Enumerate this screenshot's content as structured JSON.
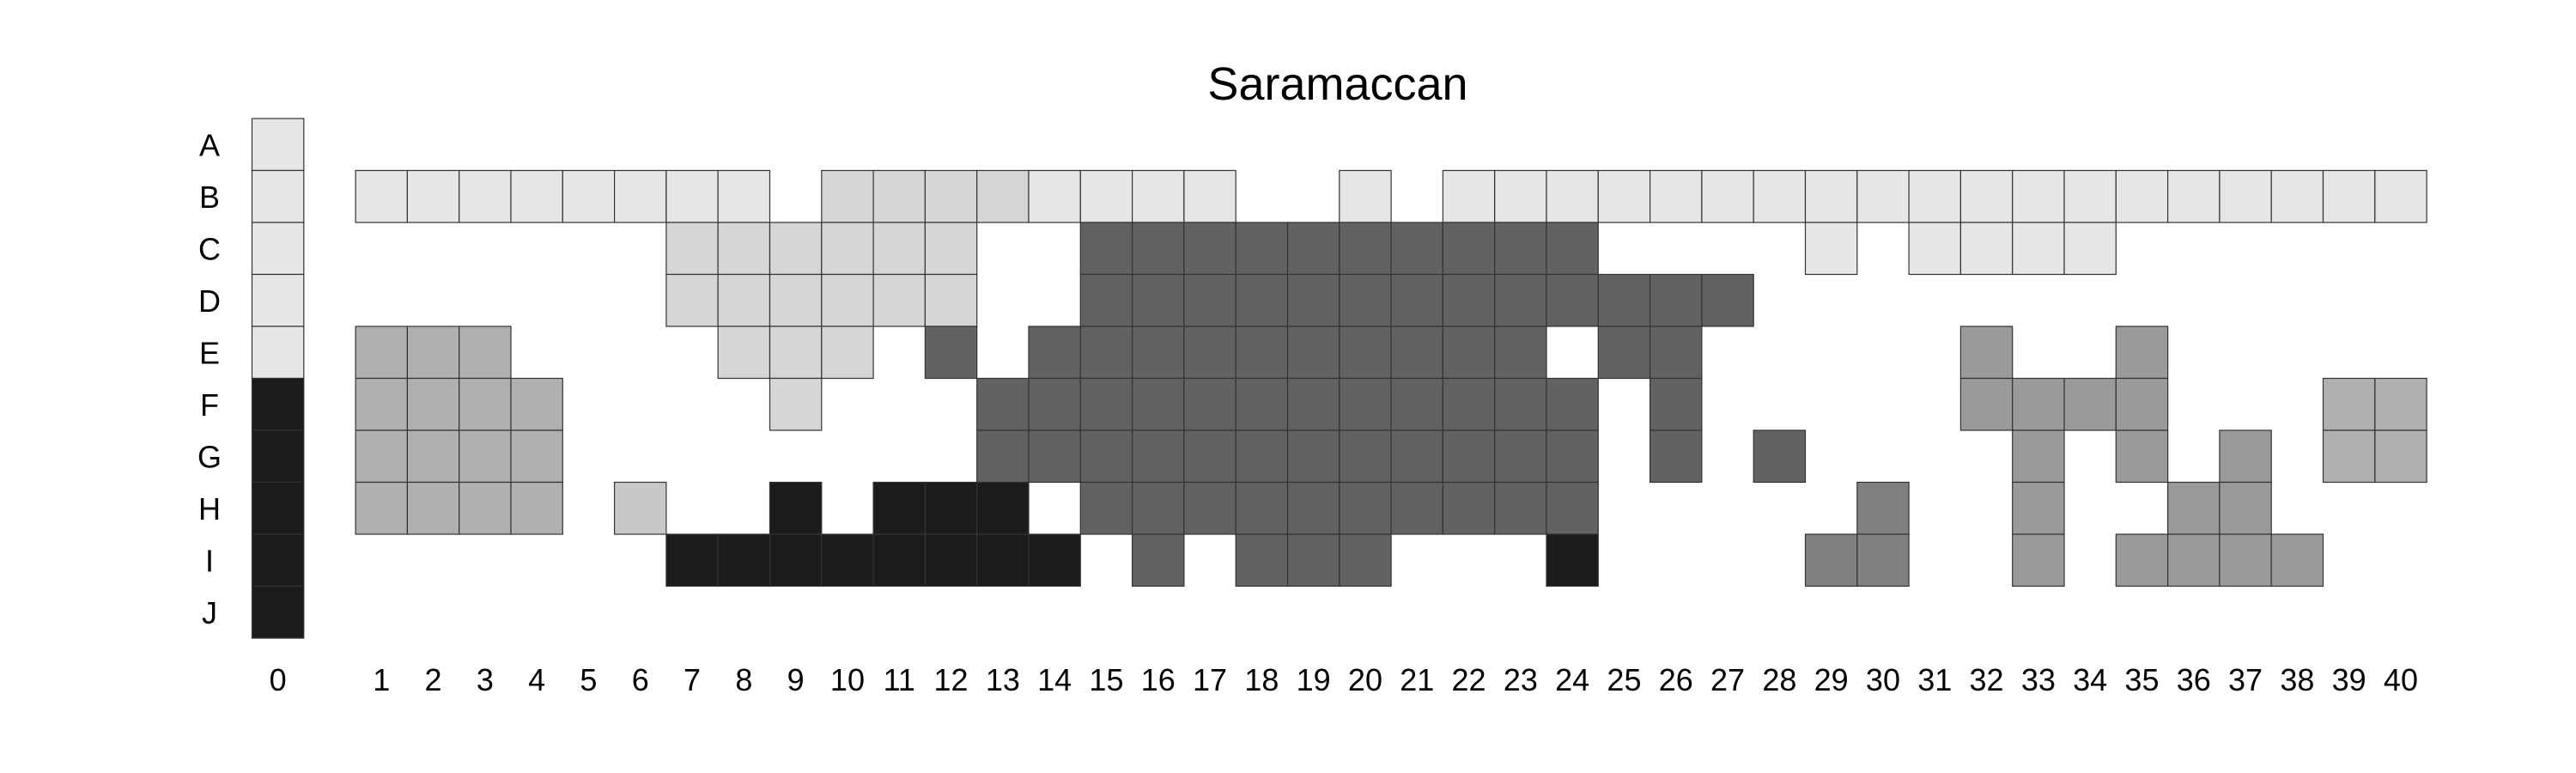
{
  "chart_data": {
    "type": "heatmap",
    "title": "Saramaccan",
    "xlabel": "",
    "ylabel": "",
    "x_categories": [
      "0",
      "1",
      "2",
      "3",
      "4",
      "5",
      "6",
      "7",
      "8",
      "9",
      "10",
      "11",
      "12",
      "13",
      "14",
      "15",
      "16",
      "17",
      "18",
      "19",
      "20",
      "21",
      "22",
      "23",
      "24",
      "25",
      "26",
      "27",
      "28",
      "29",
      "30",
      "31",
      "32",
      "33",
      "34",
      "35",
      "36",
      "37",
      "38",
      "39",
      "40"
    ],
    "y_categories": [
      "A",
      "B",
      "C",
      "D",
      "E",
      "F",
      "G",
      "H",
      "I",
      "J"
    ],
    "value_colors": {
      "1": "#e6e6e6",
      "2": "#d6d6d6",
      "3": "#b0b0b0",
      "4": "#9a9a9a",
      "5": "#808080",
      "6": "#626262",
      "7": "#1c1c1c",
      "8": "#c8c8c8"
    },
    "rows": [
      {
        "label": "A",
        "cells": [
          [
            0,
            1
          ]
        ]
      },
      {
        "label": "B",
        "cells": [
          [
            0,
            1
          ],
          [
            1,
            1
          ],
          [
            2,
            1
          ],
          [
            3,
            1
          ],
          [
            4,
            1
          ],
          [
            5,
            1
          ],
          [
            6,
            1
          ],
          [
            7,
            1
          ],
          [
            8,
            1
          ],
          [
            10,
            2
          ],
          [
            11,
            2
          ],
          [
            12,
            2
          ],
          [
            13,
            2
          ],
          [
            14,
            1
          ],
          [
            15,
            1
          ],
          [
            16,
            1
          ],
          [
            17,
            1
          ],
          [
            20,
            1
          ],
          [
            22,
            1
          ],
          [
            23,
            1
          ],
          [
            24,
            1
          ],
          [
            25,
            1
          ],
          [
            26,
            1
          ],
          [
            27,
            1
          ],
          [
            28,
            1
          ],
          [
            29,
            1
          ],
          [
            30,
            1
          ],
          [
            31,
            1
          ],
          [
            32,
            1
          ],
          [
            33,
            1
          ],
          [
            34,
            1
          ],
          [
            35,
            1
          ],
          [
            36,
            1
          ],
          [
            37,
            1
          ],
          [
            38,
            1
          ],
          [
            39,
            1
          ],
          [
            40,
            1
          ]
        ]
      },
      {
        "label": "C",
        "cells": [
          [
            0,
            1
          ],
          [
            7,
            2
          ],
          [
            8,
            2
          ],
          [
            9,
            2
          ],
          [
            10,
            2
          ],
          [
            11,
            2
          ],
          [
            12,
            2
          ],
          [
            15,
            6
          ],
          [
            16,
            6
          ],
          [
            17,
            6
          ],
          [
            18,
            6
          ],
          [
            19,
            6
          ],
          [
            20,
            6
          ],
          [
            21,
            6
          ],
          [
            22,
            6
          ],
          [
            23,
            6
          ],
          [
            24,
            6
          ],
          [
            29,
            1
          ],
          [
            31,
            1
          ],
          [
            32,
            1
          ],
          [
            33,
            1
          ],
          [
            34,
            1
          ]
        ]
      },
      {
        "label": "D",
        "cells": [
          [
            0,
            1
          ],
          [
            7,
            2
          ],
          [
            8,
            2
          ],
          [
            9,
            2
          ],
          [
            10,
            2
          ],
          [
            11,
            2
          ],
          [
            12,
            2
          ],
          [
            15,
            6
          ],
          [
            16,
            6
          ],
          [
            17,
            6
          ],
          [
            18,
            6
          ],
          [
            19,
            6
          ],
          [
            20,
            6
          ],
          [
            21,
            6
          ],
          [
            22,
            6
          ],
          [
            23,
            6
          ],
          [
            24,
            6
          ],
          [
            25,
            6
          ],
          [
            26,
            6
          ],
          [
            27,
            6
          ]
        ]
      },
      {
        "label": "E",
        "cells": [
          [
            0,
            1
          ],
          [
            1,
            3
          ],
          [
            2,
            3
          ],
          [
            3,
            3
          ],
          [
            8,
            2
          ],
          [
            9,
            2
          ],
          [
            10,
            2
          ],
          [
            12,
            6
          ],
          [
            14,
            6
          ],
          [
            15,
            6
          ],
          [
            16,
            6
          ],
          [
            17,
            6
          ],
          [
            18,
            6
          ],
          [
            19,
            6
          ],
          [
            20,
            6
          ],
          [
            21,
            6
          ],
          [
            22,
            6
          ],
          [
            23,
            6
          ],
          [
            25,
            6
          ],
          [
            26,
            6
          ],
          [
            32,
            4
          ],
          [
            35,
            4
          ]
        ]
      },
      {
        "label": "F",
        "cells": [
          [
            0,
            7
          ],
          [
            1,
            3
          ],
          [
            2,
            3
          ],
          [
            3,
            3
          ],
          [
            4,
            3
          ],
          [
            9,
            2
          ],
          [
            13,
            6
          ],
          [
            14,
            6
          ],
          [
            15,
            6
          ],
          [
            16,
            6
          ],
          [
            17,
            6
          ],
          [
            18,
            6
          ],
          [
            19,
            6
          ],
          [
            20,
            6
          ],
          [
            21,
            6
          ],
          [
            22,
            6
          ],
          [
            23,
            6
          ],
          [
            24,
            6
          ],
          [
            26,
            6
          ],
          [
            32,
            4
          ],
          [
            33,
            4
          ],
          [
            34,
            4
          ],
          [
            35,
            4
          ],
          [
            39,
            3
          ],
          [
            40,
            3
          ]
        ]
      },
      {
        "label": "G",
        "cells": [
          [
            0,
            7
          ],
          [
            1,
            3
          ],
          [
            2,
            3
          ],
          [
            3,
            3
          ],
          [
            4,
            3
          ],
          [
            13,
            6
          ],
          [
            14,
            6
          ],
          [
            15,
            6
          ],
          [
            16,
            6
          ],
          [
            17,
            6
          ],
          [
            18,
            6
          ],
          [
            19,
            6
          ],
          [
            20,
            6
          ],
          [
            21,
            6
          ],
          [
            22,
            6
          ],
          [
            23,
            6
          ],
          [
            24,
            6
          ],
          [
            26,
            6
          ],
          [
            28,
            6
          ],
          [
            33,
            4
          ],
          [
            35,
            4
          ],
          [
            37,
            4
          ],
          [
            39,
            3
          ],
          [
            40,
            3
          ]
        ]
      },
      {
        "label": "H",
        "cells": [
          [
            0,
            7
          ],
          [
            1,
            3
          ],
          [
            2,
            3
          ],
          [
            3,
            3
          ],
          [
            4,
            3
          ],
          [
            6,
            8
          ],
          [
            9,
            7
          ],
          [
            11,
            7
          ],
          [
            12,
            7
          ],
          [
            13,
            7
          ],
          [
            15,
            6
          ],
          [
            16,
            6
          ],
          [
            17,
            6
          ],
          [
            18,
            6
          ],
          [
            19,
            6
          ],
          [
            20,
            6
          ],
          [
            21,
            6
          ],
          [
            22,
            6
          ],
          [
            23,
            6
          ],
          [
            24,
            6
          ],
          [
            30,
            5
          ],
          [
            33,
            4
          ],
          [
            36,
            4
          ],
          [
            37,
            4
          ]
        ]
      },
      {
        "label": "I",
        "cells": [
          [
            0,
            7
          ],
          [
            7,
            7
          ],
          [
            8,
            7
          ],
          [
            9,
            7
          ],
          [
            10,
            7
          ],
          [
            11,
            7
          ],
          [
            12,
            7
          ],
          [
            13,
            7
          ],
          [
            14,
            7
          ],
          [
            16,
            6
          ],
          [
            18,
            6
          ],
          [
            19,
            6
          ],
          [
            20,
            6
          ],
          [
            24,
            7
          ],
          [
            29,
            5
          ],
          [
            30,
            5
          ],
          [
            33,
            4
          ],
          [
            35,
            4
          ],
          [
            36,
            4
          ],
          [
            37,
            4
          ],
          [
            38,
            4
          ]
        ]
      },
      {
        "label": "J",
        "cells": [
          [
            0,
            7
          ]
        ]
      }
    ]
  }
}
